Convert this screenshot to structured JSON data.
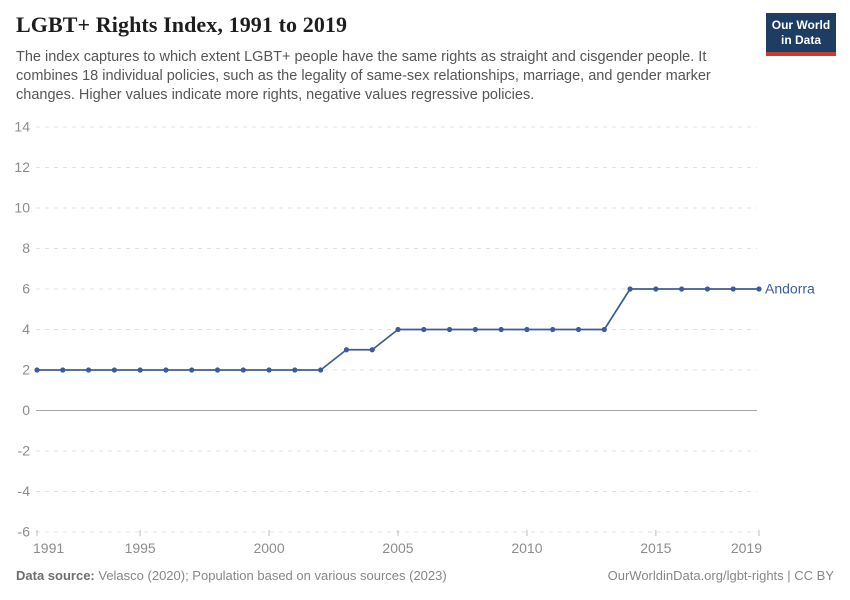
{
  "header": {
    "title": "LGBT+ Rights Index, 1991 to 2019",
    "subtitle": "The index captures to which extent LGBT+ people have the same rights as straight and cisgender people. It combines 18 individual policies, such as the legality of same-sex relationships, marriage, and gender marker changes. Higher values indicate more rights, negative values regressive policies.",
    "logo": {
      "line1": "Our World",
      "line2": "in Data"
    }
  },
  "chart_data": {
    "type": "line",
    "title": "LGBT+ Rights Index, 1991 to 2019",
    "x": [
      1991,
      1992,
      1993,
      1994,
      1995,
      1996,
      1997,
      1998,
      1999,
      2000,
      2001,
      2002,
      2003,
      2004,
      2005,
      2006,
      2007,
      2008,
      2009,
      2010,
      2011,
      2012,
      2013,
      2014,
      2015,
      2016,
      2017,
      2018,
      2019
    ],
    "series": [
      {
        "name": "Andorra",
        "color": "#3d5c97",
        "values": [
          2,
          2,
          2,
          2,
          2,
          2,
          2,
          2,
          2,
          2,
          2,
          2,
          3,
          3,
          4,
          4,
          4,
          4,
          4,
          4,
          4,
          4,
          4,
          6,
          6,
          6,
          6,
          6,
          6
        ]
      }
    ],
    "xlabel": "",
    "ylabel": "",
    "ylim": [
      -6,
      14
    ],
    "y_ticks": [
      14,
      12,
      10,
      8,
      6,
      4,
      2,
      0,
      -2,
      -4,
      -6
    ],
    "x_ticks": [
      1991,
      1995,
      2000,
      2005,
      2010,
      2015,
      2019
    ],
    "grid": "horizontal-dashed",
    "zero_line": true,
    "legend_position": "end-of-line-label",
    "markers": true
  },
  "colors": {
    "series_blue": "#3d5c97",
    "gridline": "#e0e0e0",
    "zero_line": "#a6a6a6",
    "tick": "#bbbbbb",
    "axis_label": "#8c8c8c",
    "logo_navy": "#1d3d63",
    "logo_red": "#c93a2f"
  },
  "footer": {
    "source_label": "Data source:",
    "source_text": " Velasco (2020); Population based on various sources (2023)",
    "credit": "OurWorldinData.org/lgbt-rights | CC BY"
  }
}
